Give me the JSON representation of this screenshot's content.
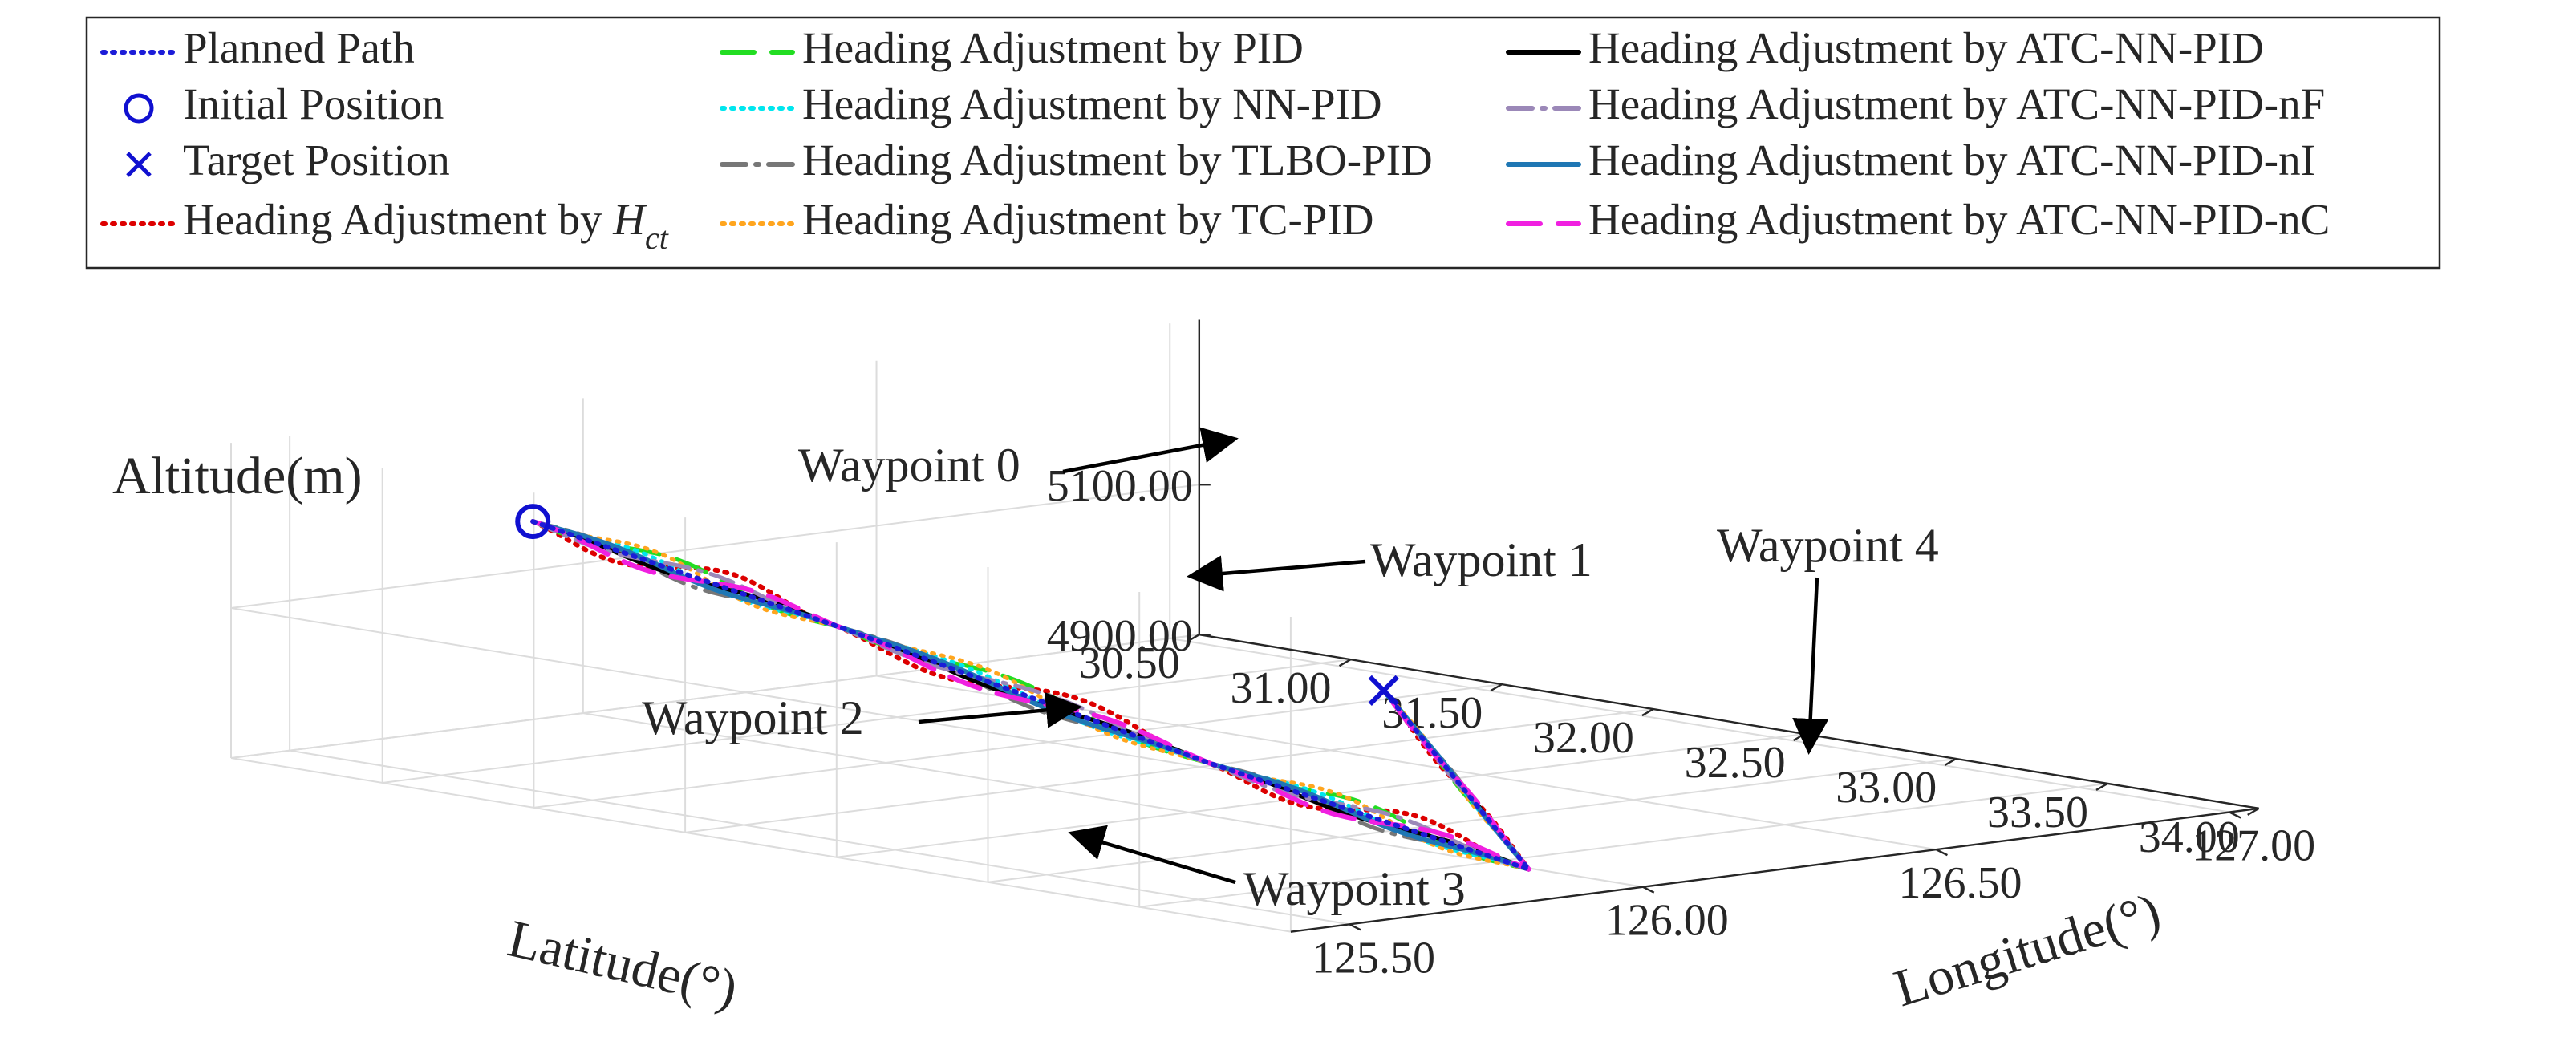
{
  "chart_data": {
    "type": "line",
    "title": "",
    "axes": {
      "x": {
        "label": "Longitude(°)",
        "ticks": [
          "125.50",
          "126.00",
          "126.50",
          "127.00"
        ],
        "range": [
          125.4,
          127.05
        ]
      },
      "y": {
        "label": "Latitude(°)",
        "ticks": [
          "30.50",
          "31.00",
          "31.50",
          "32.00",
          "32.50",
          "33.00",
          "33.50",
          "34.00"
        ],
        "range": [
          30.5,
          34.0
        ]
      },
      "z": {
        "label": "Altitude(m)",
        "ticks": [
          "4900.00",
          "5100.00"
        ],
        "range": [
          4900,
          5320
        ]
      },
      "grid": true
    },
    "legend": {
      "placement": "top",
      "entries": [
        {
          "label": "Planned Path",
          "color": "#1c1cd8",
          "dash": "dotted",
          "marker": ""
        },
        {
          "label": "Initial Position",
          "color": "#1010d0",
          "dash": "none",
          "marker": "circle"
        },
        {
          "label": "Target Position",
          "color": "#1010d0",
          "dash": "none",
          "marker": "cross"
        },
        {
          "label": "Heading Adjustment by ",
          "italic": "H",
          "subscript": "ct",
          "color": "#dd0000",
          "dash": "dotted",
          "marker": ""
        },
        {
          "label": "Heading Adjustment by PID",
          "color": "#22dd22",
          "dash": "dashed",
          "marker": ""
        },
        {
          "label": "Heading Adjustment by NN-PID",
          "color": "#00e6ee",
          "dash": "dotted",
          "marker": ""
        },
        {
          "label": "Heading Adjustment by TLBO-PID",
          "color": "#777777",
          "dash": "dashdot",
          "marker": ""
        },
        {
          "label": "Heading Adjustment by TC-PID",
          "color": "#ffa51e",
          "dash": "dotted",
          "marker": ""
        },
        {
          "label": "Heading Adjustment by ATC-NN-PID",
          "color": "#000000",
          "dash": "solid",
          "marker": ""
        },
        {
          "label": "Heading Adjustment by ATC-NN-PID-nF",
          "color": "#9b88b8",
          "dash": "dashdot",
          "marker": ""
        },
        {
          "label": "Heading Adjustment by ATC-NN-PID-nI",
          "color": "#1f77b4",
          "dash": "solid",
          "marker": ""
        },
        {
          "label": "Heading Adjustment by ATC-NN-PID-nC",
          "color": "#f020e0",
          "dash": "dashed",
          "marker": ""
        }
      ]
    },
    "waypoints": [
      {
        "label": "Waypoint 0",
        "lon": 125.45,
        "lat": 31.4,
        "alt": 5270
      },
      {
        "label": "Waypoint 1",
        "lon": 125.61,
        "lat": 32.1,
        "alt": 5160
      },
      {
        "label": "Waypoint 2",
        "lon": 125.78,
        "lat": 33.0,
        "alt": 5020
      },
      {
        "label": "Waypoint 3",
        "lon": 125.95,
        "lat": 33.72,
        "alt": 4910
      },
      {
        "label": "Waypoint 4",
        "lon": 126.9,
        "lat": 31.4,
        "alt": 4900
      }
    ],
    "series": [
      {
        "name": "Planned Path",
        "points": [
          [
            125.45,
            31.4,
            5270
          ],
          [
            125.61,
            32.1,
            5160
          ],
          [
            125.78,
            33.0,
            5020
          ],
          [
            125.95,
            33.72,
            4910
          ],
          [
            126.9,
            31.4,
            4900
          ]
        ]
      },
      {
        "name": "Heading Adjustment by ATC-NN-PID",
        "points": [
          [
            125.45,
            31.4,
            5270
          ],
          [
            125.58,
            31.95,
            5190
          ],
          [
            125.64,
            32.2,
            5150
          ],
          [
            125.72,
            32.7,
            5070
          ],
          [
            125.8,
            33.05,
            5010
          ],
          [
            125.88,
            33.4,
            4950
          ],
          [
            125.95,
            33.72,
            4912
          ],
          [
            126.4,
            32.6,
            4906
          ],
          [
            126.9,
            31.4,
            4900
          ]
        ]
      }
    ]
  }
}
